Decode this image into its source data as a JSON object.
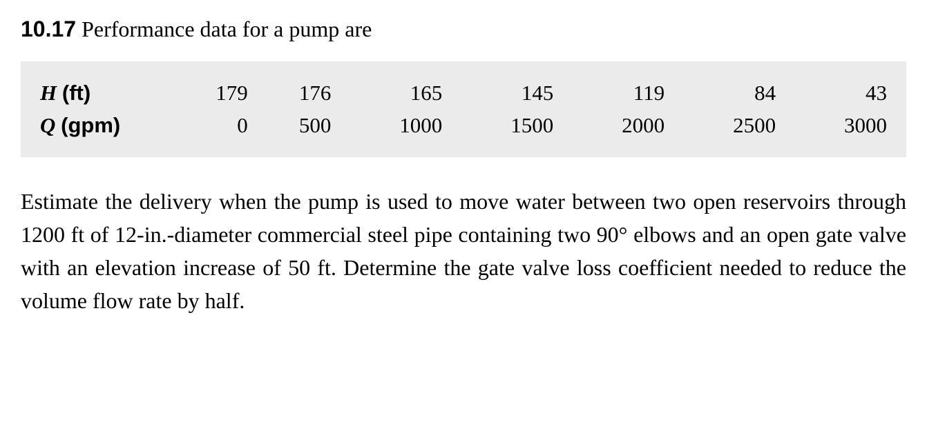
{
  "problem": {
    "number": "10.17",
    "heading_text": "Performance data for a pump are"
  },
  "table": {
    "background_color": "#ebebeb",
    "rows": [
      {
        "label_symbol": "H",
        "label_unit": "(ft)",
        "values": [
          "179",
          "176",
          "165",
          "145",
          "119",
          "84",
          "43"
        ]
      },
      {
        "label_symbol": "Q",
        "label_unit": "(gpm)",
        "values": [
          "0",
          "500",
          "1000",
          "1500",
          "2000",
          "2500",
          "3000"
        ]
      }
    ]
  },
  "body": {
    "text": "Estimate the delivery when the pump is used to move water between two open reservoirs through 1200 ft of 12-in.-diameter commercial steel pipe containing two 90° elbows and an open gate valve with an elevation increase of 50 ft. Determine the gate valve loss coefficient needed to reduce the volume flow rate by half."
  }
}
